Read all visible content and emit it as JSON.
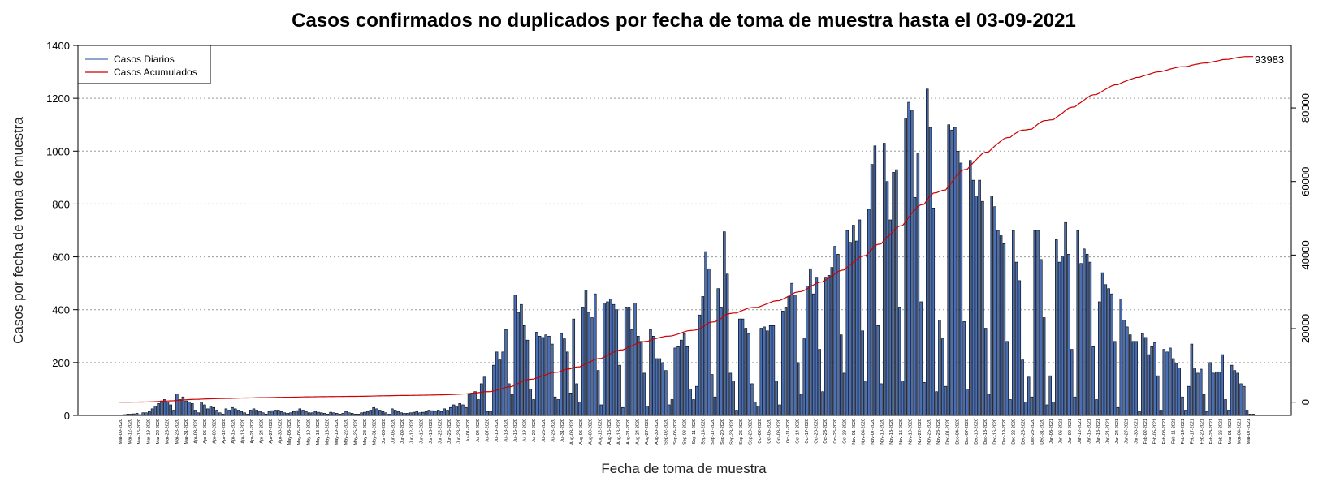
{
  "chart_data": {
    "type": "bar",
    "title": "Casos confirmados no duplicados por fecha de toma de muestra hasta el 03-09-2021",
    "xlabel": "Fecha de toma de muestra",
    "ylabel": "Casos por fecha de toma de muestra",
    "ylim": [
      0,
      1400
    ],
    "y_ticks": [
      0,
      200,
      400,
      600,
      800,
      1000,
      1200,
      1400
    ],
    "y2lim": [
      -3600,
      97000
    ],
    "y2_ticks": [
      0,
      20000,
      40000,
      60000,
      80000
    ],
    "grid": "horizontal dotted",
    "legend_position": "top-left",
    "series": [
      {
        "name": "Casos Diarios",
        "type": "bar",
        "color": "#4a6fb5",
        "values": [
          1,
          2,
          3,
          5,
          5,
          6,
          8,
          3,
          10,
          10,
          15,
          25,
          35,
          45,
          55,
          60,
          50,
          40,
          20,
          82,
          60,
          70,
          55,
          50,
          45,
          20,
          10,
          50,
          40,
          25,
          35,
          30,
          20,
          10,
          5,
          25,
          20,
          30,
          25,
          20,
          15,
          10,
          5,
          20,
          25,
          20,
          15,
          10,
          5,
          15,
          18,
          20,
          20,
          15,
          10,
          8,
          10,
          15,
          18,
          25,
          20,
          15,
          10,
          10,
          15,
          12,
          10,
          8,
          5,
          12,
          10,
          8,
          5,
          8,
          15,
          10,
          8,
          5,
          5,
          10,
          12,
          15,
          20,
          30,
          25,
          20,
          15,
          10,
          5,
          25,
          20,
          15,
          10,
          8,
          8,
          10,
          12,
          15,
          10,
          12,
          15,
          20,
          18,
          15,
          20,
          15,
          25,
          20,
          30,
          40,
          35,
          45,
          40,
          30,
          80,
          85,
          90,
          60,
          120,
          145,
          15,
          15,
          190,
          240,
          210,
          240,
          325,
          120,
          80,
          455,
          390,
          420,
          340,
          285,
          100,
          60,
          315,
          300,
          295,
          305,
          300,
          270,
          70,
          60,
          310,
          290,
          240,
          85,
          365,
          120,
          50,
          410,
          475,
          390,
          370,
          460,
          170,
          40,
          425,
          430,
          440,
          420,
          400,
          190,
          30,
          410,
          410,
          325,
          425,
          300,
          280,
          160,
          35,
          325,
          300,
          215,
          215,
          200,
          170,
          40,
          60,
          255,
          260,
          285,
          310,
          260,
          100,
          60,
          110,
          380,
          450,
          620,
          555,
          155,
          70,
          480,
          410,
          695,
          535,
          160,
          130,
          20,
          365,
          365,
          330,
          310,
          120,
          50,
          35,
          330,
          335,
          320,
          340,
          340,
          130,
          40,
          395,
          410,
          450,
          500,
          455,
          200,
          80,
          290,
          490,
          555,
          460,
          520,
          250,
          90,
          520,
          530,
          560,
          640,
          610,
          305,
          160,
          700,
          655,
          720,
          660,
          740,
          320,
          130,
          780,
          950,
          1020,
          340,
          120,
          1030,
          885,
          740,
          920,
          930,
          410,
          130,
          1125,
          1185,
          1155,
          825,
          990,
          430,
          125,
          1235,
          1090,
          785,
          90,
          360,
          290,
          110,
          1100,
          1080,
          1090,
          1000,
          955,
          355,
          100,
          965,
          890,
          830,
          890,
          810,
          330,
          80,
          830,
          790,
          700,
          680,
          650,
          280,
          60,
          700,
          580,
          510,
          210,
          50,
          145,
          70,
          700,
          700,
          590,
          370,
          40,
          150,
          50,
          665,
          580,
          600,
          730,
          610,
          250,
          70,
          700,
          575,
          630,
          610,
          580,
          260,
          60,
          430,
          540,
          495,
          480,
          460,
          280,
          30,
          440,
          360,
          335,
          305,
          280,
          280,
          15,
          310,
          295,
          230,
          260,
          275,
          150,
          20,
          250,
          240,
          255,
          215,
          195,
          180,
          70,
          20,
          110,
          270,
          180,
          160,
          175,
          80,
          15,
          200,
          160,
          165,
          165,
          230,
          60,
          20,
          190,
          170,
          160,
          120,
          110,
          20,
          5,
          5
        ]
      },
      {
        "name": "Casos Acumulados",
        "type": "line",
        "color": "#cc0000",
        "end_label": "93983"
      }
    ],
    "date_labels": [
      "Mar-09-2020",
      "Mar-12-2020",
      "Mar-16-2020",
      "Mar-19-2020",
      "Mar-22-2020",
      "Mar-25-2020",
      "Mar-28-2020",
      "Mar-31-2020",
      "Apr-03-2020",
      "Apr-06-2020",
      "Apr-09-2020",
      "Apr-12-2020",
      "Apr-15-2020",
      "Apr-18-2020",
      "Apr-21-2020",
      "Apr-24-2020",
      "Apr-27-2020",
      "Apr-30-2020",
      "May-03-2020",
      "May-06-2020",
      "May-10-2020",
      "May-13-2020",
      "May-16-2020",
      "May-19-2020",
      "May-22-2020",
      "May-25-2020",
      "May-28-2020",
      "May-31-2020",
      "Jun-03-2020",
      "Jun-06-2020",
      "Jun-09-2020",
      "Jun-12-2020",
      "Jun-15-2020",
      "Jun-18-2020",
      "Jun-22-2020",
      "Jun-25-2020",
      "Jun-28-2020",
      "Jul-01-2020",
      "Jul-04-2020",
      "Jul-07-2020",
      "Jul-10-2020",
      "Jul-13-2020",
      "Jul-16-2020",
      "Jul-19-2020",
      "Jul-22-2020",
      "Jul-25-2020",
      "Jul-28-2020",
      "Jul-31-2020",
      "Aug-03-2020",
      "Aug-06-2020",
      "Aug-09-2020",
      "Aug-12-2020",
      "Aug-15-2020",
      "Aug-18-2020",
      "Aug-21-2020",
      "Aug-24-2020",
      "Aug-27-2020",
      "Aug-30-2020",
      "Sep-02-2020",
      "Sep-05-2020",
      "Sep-08-2020",
      "Sep-11-2020",
      "Sep-14-2020",
      "Sep-17-2020",
      "Sep-20-2020",
      "Sep-23-2020",
      "Sep-26-2020",
      "Sep-29-2020",
      "Oct-02-2020",
      "Oct-05-2020",
      "Oct-08-2020",
      "Oct-11-2020",
      "Oct-14-2020",
      "Oct-17-2020",
      "Oct-20-2020",
      "Oct-23-2020",
      "Oct-26-2020",
      "Oct-29-2020",
      "Nov-01-2020",
      "Nov-04-2020",
      "Nov-07-2020",
      "Nov-10-2020",
      "Nov-13-2020",
      "Nov-16-2020",
      "Nov-19-2020",
      "Nov-22-2020",
      "Nov-25-2020",
      "Nov-28-2020",
      "Dec-01-2020",
      "Dec-04-2020",
      "Dec-07-2020",
      "Dec-10-2020",
      "Dec-13-2020",
      "Dec-16-2020",
      "Dec-19-2020",
      "Dec-22-2020",
      "Dec-25-2020",
      "Dec-28-2020",
      "Dec-31-2020",
      "Jan-03-2021",
      "Jan-06-2021",
      "Jan-09-2021",
      "Jan-12-2021",
      "Jan-15-2021",
      "Jan-18-2021",
      "Jan-21-2021",
      "Jan-24-2021",
      "Jan-27-2021",
      "Jan-30-2021",
      "Feb-02-2021",
      "Feb-05-2021",
      "Feb-08-2021",
      "Feb-11-2021",
      "Feb-14-2021",
      "Feb-17-2021",
      "Feb-20-2021",
      "Feb-23-2021",
      "Feb-26-2021",
      "Mar-01-2021",
      "Mar-04-2021",
      "Mar-07-2021"
    ]
  }
}
